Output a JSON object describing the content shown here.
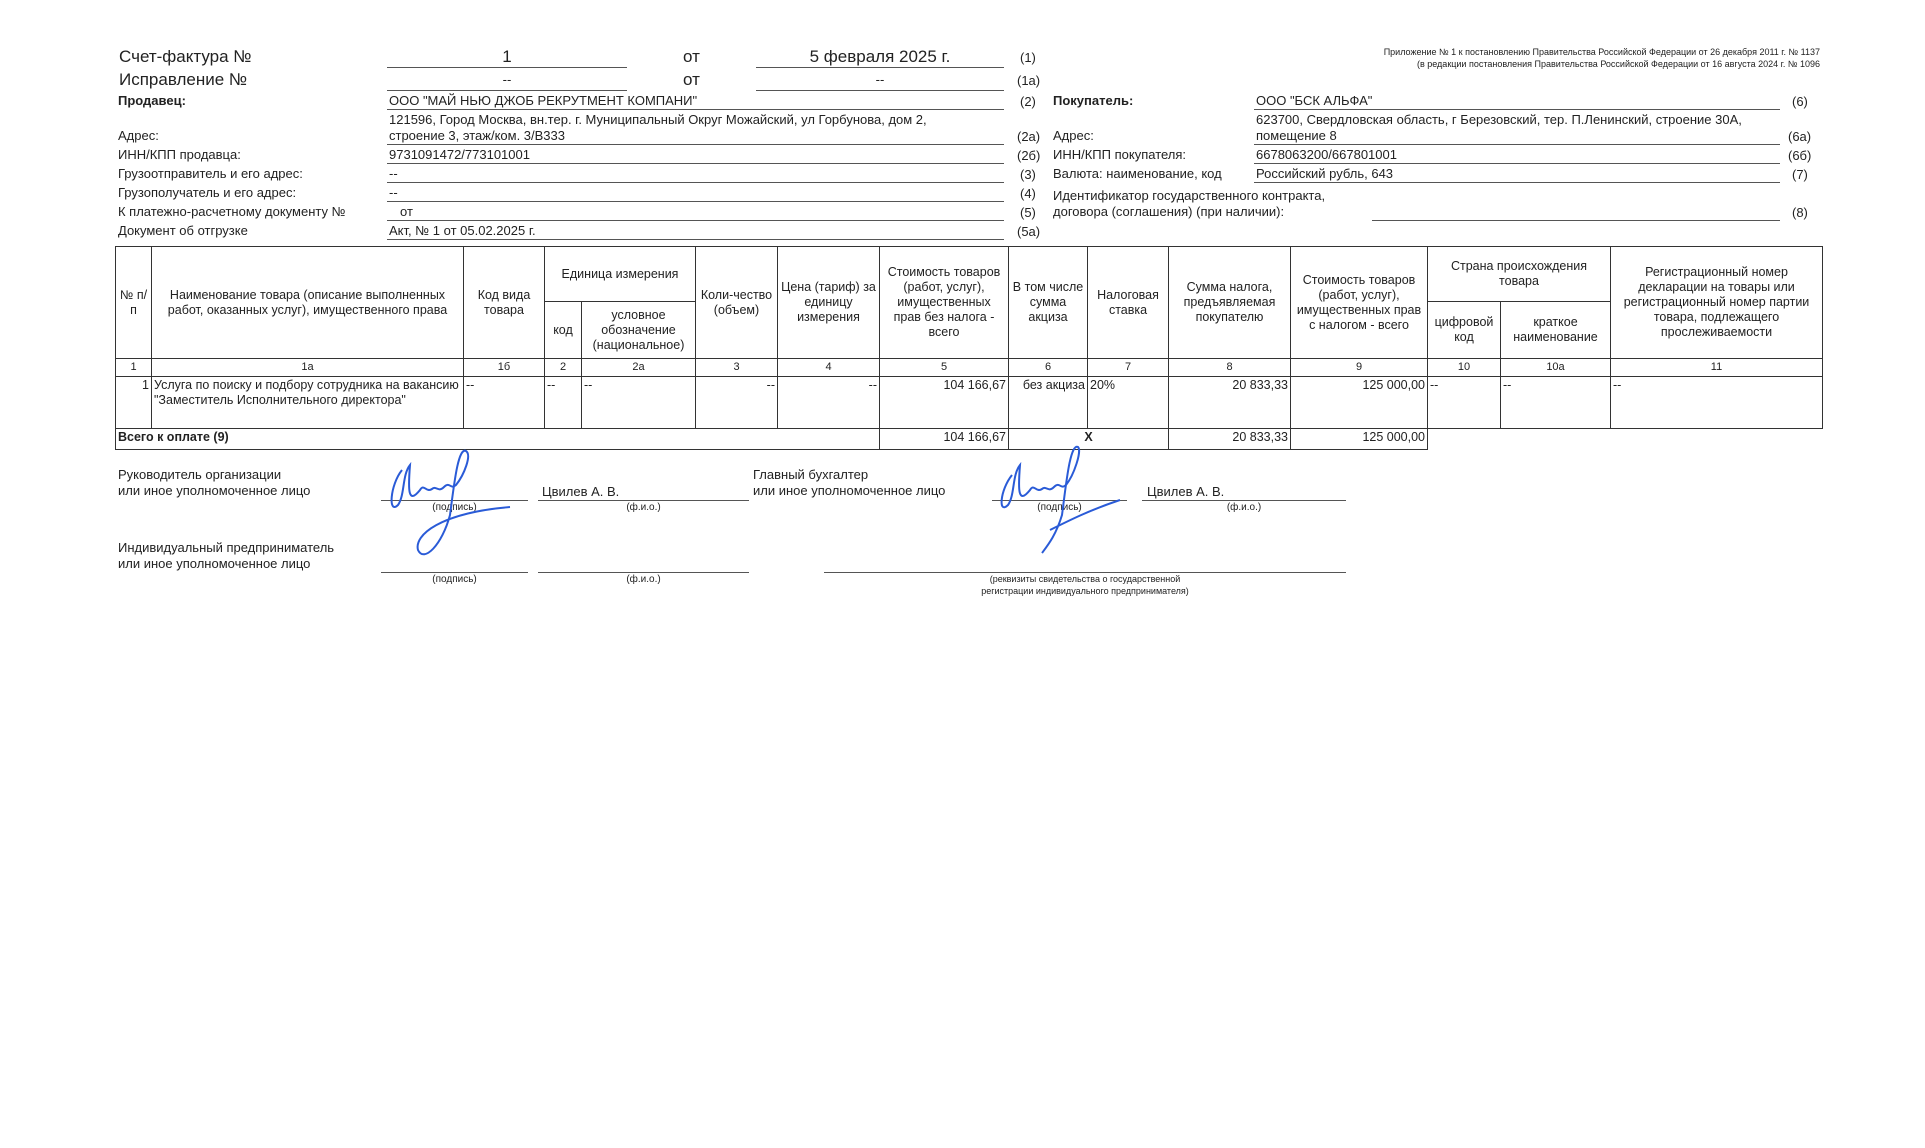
{
  "header": {
    "invoice_label": "Счет-фактура №",
    "invoice_number": "1",
    "from1": "от",
    "invoice_date": "5 февраля 2025 г.",
    "code1": "(1)",
    "correction_label": "Исправление №",
    "correction_number": "--",
    "from2": "от",
    "correction_date": "--",
    "code1a": "(1а)",
    "appendix_line1": "Приложение № 1 к постановлению Правительства Российской Федерации от 26 декабря 2011 г. № 1137",
    "appendix_line2": "(в редакции постановления Правительства Российской Федерации от 16 августа 2024 г. № 1096"
  },
  "seller": {
    "label": "Продавец:",
    "value": "ООО \"МАЙ НЬЮ ДЖОБ РЕКРУТМЕНТ КОМПАНИ\"",
    "code": "(2)",
    "address_label": "Адрес:",
    "address_line1": "121596, Город Москва, вн.тер. г. Муниципальный Округ Можайский, ул Горбунова, дом 2,",
    "address_line2": "строение 3, этаж/ком. 3/В333",
    "address_code": "(2а)",
    "inn_label": "ИНН/КПП продавца:",
    "inn": "9731091472/773101001",
    "inn_code": "(2б)",
    "shipper_label": "Грузоотправитель и его адрес:",
    "shipper": "--",
    "shipper_code": "(3)",
    "consignee_label": "Грузополучатель и его адрес:",
    "consignee": "--",
    "consignee_code": "(4)",
    "payment_label": "К платежно-расчетному документу №",
    "payment": "от",
    "payment_code": "(5)",
    "shipment_label": "Документ об отгрузке",
    "shipment": "Акт, № 1 от 05.02.2025 г.",
    "shipment_code": "(5а)"
  },
  "buyer": {
    "label": "Покупатель:",
    "value": "ООО \"БСК АЛЬФА\"",
    "code": "(6)",
    "address_label": "Адрес:",
    "address_line1": "623700, Свердловская область, г Березовский, тер. П.Ленинский, строение 30А,",
    "address_line2": "помещение 8",
    "address_code": "(6а)",
    "inn_label": "ИНН/КПП покупателя:",
    "inn": "6678063200/667801001",
    "inn_code": "(6б)",
    "currency_label": "Валюта: наименование, код",
    "currency": "Российский рубль, 643",
    "currency_code": "(7)",
    "contract_label1": "Идентификатор государственного контракта,",
    "contract_label2": "договора (соглашения) (при наличии):",
    "contract_code": "(8)"
  },
  "table": {
    "headers": {
      "no": "№ п/п",
      "name": "Наименование товара (описание выполненных работ, оказанных услуг), имущественного права",
      "kind": "Код вида товара",
      "unit": "Единица измерения",
      "unit_code": "код",
      "unit_name": "условное обозначение (национальное)",
      "qty": "Коли-чество (объем)",
      "price": "Цена (тариф) за единицу измерения",
      "cost": "Стоимость товаров (работ, услуг), имущественных прав без налога - всего",
      "excise": "В том числе сумма акциза",
      "rate": "Налоговая ставка",
      "tax": "Сумма налога, предъявляемая покупателю",
      "total": "Стоимость товаров (работ, услуг), имущественных прав с налогом - всего",
      "country": "Страна происхождения товара",
      "country_code": "цифровой код",
      "country_name": "краткое наименование",
      "reg": "Регистрационный номер декларации на товары или регистрационный номер партии товара, подлежащего прослеживаемости"
    },
    "col_numbers": [
      "1",
      "1а",
      "1б",
      "2",
      "2а",
      "3",
      "4",
      "5",
      "6",
      "7",
      "8",
      "9",
      "10",
      "10а",
      "11"
    ],
    "rows": [
      [
        "1",
        "Услуга по поиску и подбору сотрудника на вакансию \"Заместитель Исполнительного директора\"",
        "--",
        "--",
        "--",
        "--",
        "--",
        "104 166,67",
        "без акциза",
        "20%",
        "20 833,33",
        "125 000,00",
        "--",
        "--",
        "--"
      ]
    ],
    "total": {
      "label": "Всего к оплате (9)",
      "cost": "104 166,67",
      "excise": "Х",
      "tax": "20 833,33",
      "total": "125 000,00"
    }
  },
  "signatures": {
    "head_label1": "Руководитель организации",
    "head_label2": "или иное уполномоченное лицо",
    "head_name": "Цвилев А. В.",
    "acc_label1": "Главный бухгалтер",
    "acc_label2": "или иное уполномоченное лицо",
    "acc_name": "Цвилев А. В.",
    "ip_label1": "Индивидуальный предприниматель",
    "ip_label2": "или иное уполномоченное лицо",
    "sign_caption": "(подпись)",
    "fio_caption": "(ф.и.о.)",
    "req_caption1": "(реквизиты свидетельства о государственной",
    "req_caption2": "регистрации индивидуального предпринимателя)",
    "ink_color": "#2a5bd7"
  }
}
